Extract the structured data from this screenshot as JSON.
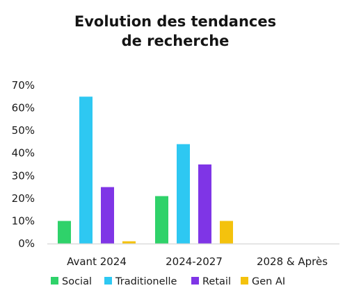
{
  "chart_data": {
    "type": "bar",
    "title_lines": [
      "Evolution des tendances",
      "de recherche"
    ],
    "xlabel": "",
    "ylabel": "",
    "ylim": [
      0,
      70
    ],
    "y_ticks": [
      0,
      10,
      20,
      30,
      40,
      50,
      60,
      70
    ],
    "y_tick_labels": [
      "0%",
      "10%",
      "20%",
      "30%",
      "40%",
      "50%",
      "60%",
      "70%"
    ],
    "categories": [
      "Avant 2024",
      "2024-2027",
      "2028 & Après"
    ],
    "series": [
      {
        "name": "Social",
        "color": "#2fd26a",
        "values": [
          10,
          21,
          null
        ]
      },
      {
        "name": "Traditionelle",
        "color": "#2ec8f2",
        "values": [
          65,
          44,
          null
        ]
      },
      {
        "name": "Retail",
        "color": "#7f35e6",
        "values": [
          25,
          35,
          null
        ]
      },
      {
        "name": "Gen AI",
        "color": "#f4c20d",
        "values": [
          1,
          10,
          null
        ]
      }
    ],
    "grid": false,
    "legend_position": "bottom"
  }
}
